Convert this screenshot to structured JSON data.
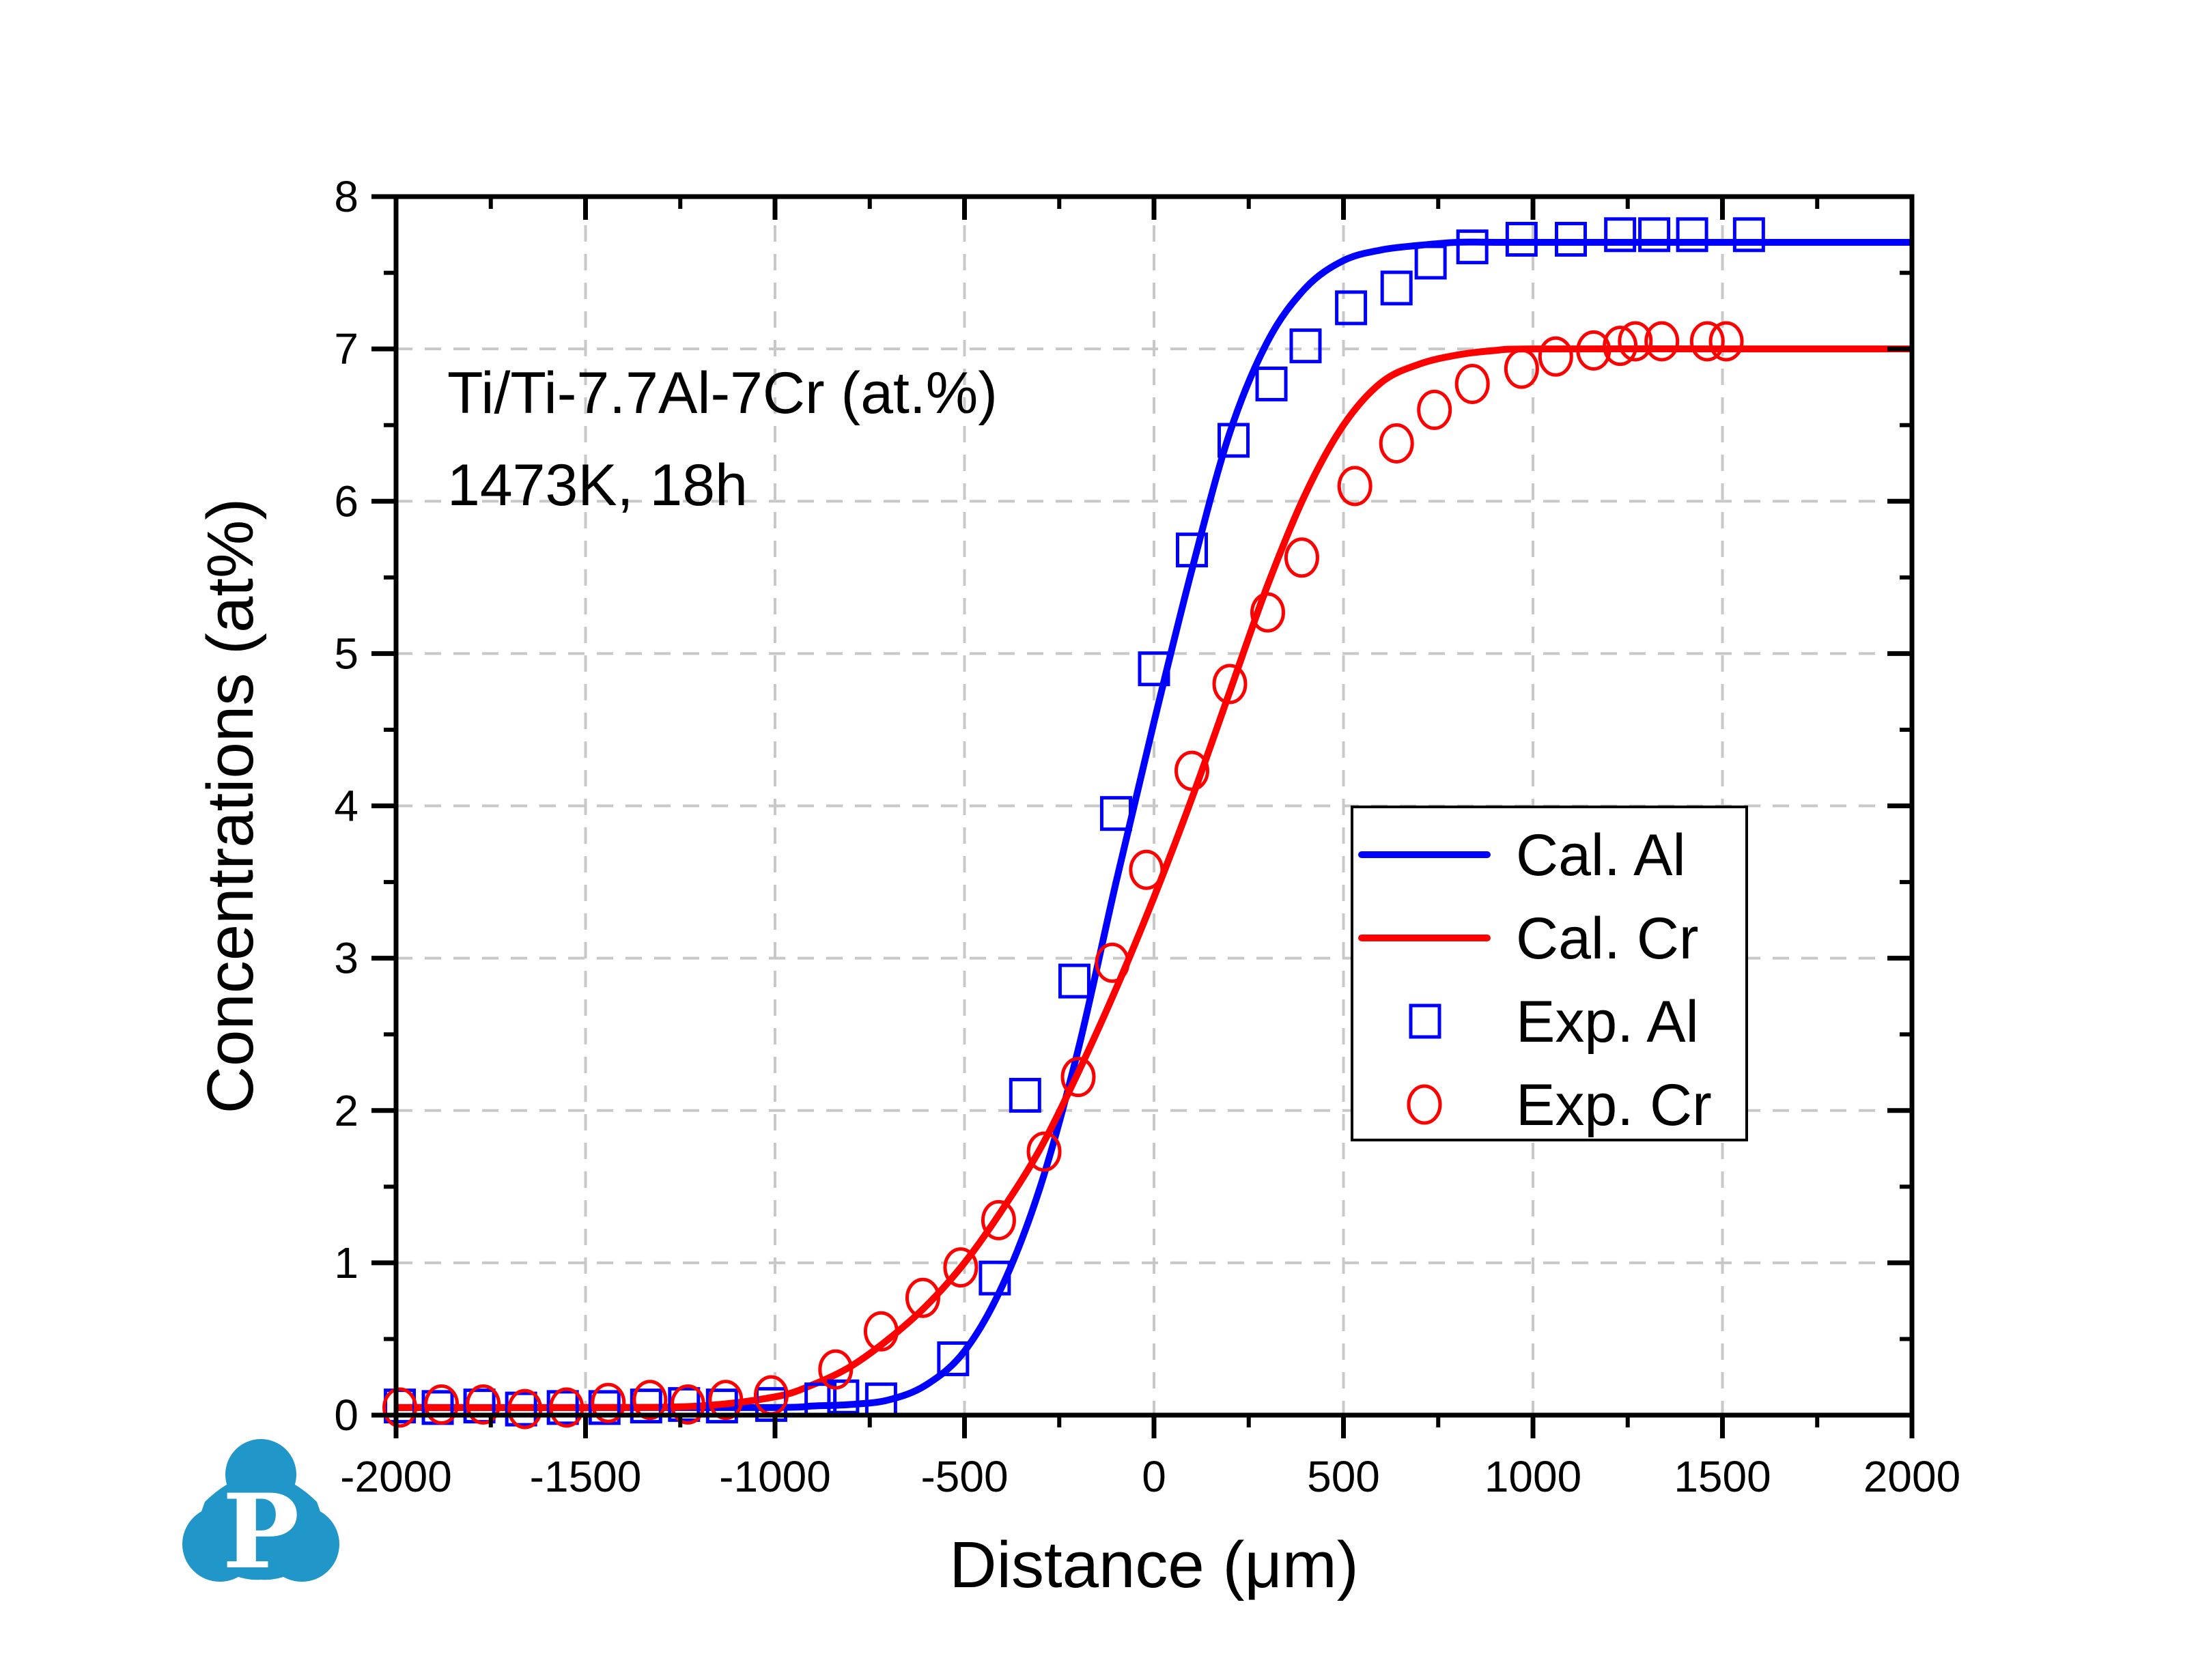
{
  "chart_data": {
    "type": "line",
    "title": "",
    "xlabel": "Distance (μm)",
    "ylabel": "Concentrations (at%)",
    "xlim": [
      -2000,
      2000
    ],
    "ylim": [
      0,
      8
    ],
    "xticks": [
      -2000,
      -1500,
      -1000,
      -500,
      0,
      500,
      1000,
      1500,
      2000
    ],
    "xtick_labels": [
      "-2000",
      "-1500",
      "-1000",
      "-500",
      "0",
      "500",
      "1000",
      "1500",
      "2000"
    ],
    "yticks": [
      0,
      1,
      2,
      3,
      4,
      5,
      6,
      7,
      8
    ],
    "ytick_labels": [
      "0",
      "1",
      "2",
      "3",
      "4",
      "5",
      "6",
      "7",
      "8"
    ],
    "grid": true,
    "legend_position": "center-right",
    "annotations": [
      "Ti/Ti-7.7Al-7Cr (at.%)",
      "1473K, 18h"
    ],
    "series": [
      {
        "name": "Cal. Al",
        "kind": "line",
        "color": "#0000ff",
        "x": [
          -2000,
          -1500,
          -1000,
          -900,
          -800,
          -700,
          -600,
          -500,
          -400,
          -300,
          -200,
          -100,
          0,
          100,
          200,
          300,
          400,
          500,
          600,
          700,
          800,
          900,
          1000,
          1500,
          2000
        ],
        "y": [
          0.05,
          0.05,
          0.05,
          0.06,
          0.07,
          0.1,
          0.2,
          0.42,
          0.85,
          1.5,
          2.4,
          3.5,
          4.55,
          5.55,
          6.45,
          7.05,
          7.4,
          7.58,
          7.65,
          7.68,
          7.7,
          7.7,
          7.7,
          7.7,
          7.7
        ]
      },
      {
        "name": "Cal. Cr",
        "kind": "line",
        "color": "#ff0000",
        "x": [
          -2000,
          -1500,
          -1200,
          -1000,
          -900,
          -800,
          -700,
          -600,
          -500,
          -400,
          -300,
          -200,
          -100,
          0,
          100,
          200,
          300,
          400,
          500,
          600,
          700,
          800,
          900,
          1000,
          1500,
          2000
        ],
        "y": [
          0.05,
          0.05,
          0.06,
          0.12,
          0.2,
          0.32,
          0.5,
          0.72,
          1.0,
          1.35,
          1.75,
          2.25,
          2.8,
          3.4,
          4.05,
          4.75,
          5.45,
          6.05,
          6.5,
          6.78,
          6.9,
          6.96,
          6.99,
          7.0,
          7.0,
          7.0
        ]
      },
      {
        "name": "Exp. Al",
        "kind": "scatter",
        "marker": "square",
        "color": "#0000ff",
        "x": [
          -1990,
          -1890,
          -1780,
          -1670,
          -1560,
          -1450,
          -1340,
          -1240,
          -1140,
          -1010,
          -880,
          -820,
          -720,
          -530,
          -420,
          -340,
          -210,
          -100,
          0,
          100,
          210,
          310,
          400,
          520,
          640,
          730,
          840,
          970,
          1100,
          1230,
          1320,
          1420,
          1570
        ],
        "y": [
          0.06,
          0.05,
          0.06,
          0.04,
          0.05,
          0.05,
          0.06,
          0.07,
          0.06,
          0.07,
          0.1,
          0.12,
          0.1,
          0.37,
          0.9,
          2.1,
          2.85,
          3.95,
          4.9,
          5.68,
          6.4,
          6.77,
          7.02,
          7.27,
          7.4,
          7.57,
          7.67,
          7.72,
          7.72,
          7.75,
          7.75,
          7.75,
          7.75
        ]
      },
      {
        "name": "Exp. Cr",
        "kind": "scatter",
        "marker": "circle",
        "color": "#ff0000",
        "x": [
          -1990,
          -1880,
          -1770,
          -1660,
          -1550,
          -1440,
          -1330,
          -1230,
          -1130,
          -1010,
          -840,
          -720,
          -610,
          -510,
          -410,
          -290,
          -200,
          -110,
          -20,
          100,
          200,
          300,
          390,
          530,
          640,
          740,
          840,
          970,
          1060,
          1160,
          1230,
          1270,
          1340,
          1460,
          1510
        ],
        "y": [
          0.05,
          0.07,
          0.07,
          0.04,
          0.05,
          0.08,
          0.1,
          0.07,
          0.1,
          0.13,
          0.3,
          0.55,
          0.77,
          0.97,
          1.28,
          1.73,
          2.22,
          2.97,
          3.58,
          4.23,
          4.8,
          5.27,
          5.63,
          6.1,
          6.38,
          6.6,
          6.77,
          6.87,
          6.95,
          6.99,
          7.02,
          7.05,
          7.05,
          7.05,
          7.05
        ]
      }
    ]
  },
  "logo": {
    "letter": "P",
    "color": "#2196c8",
    "icon": "cloud-p-logo-icon"
  }
}
